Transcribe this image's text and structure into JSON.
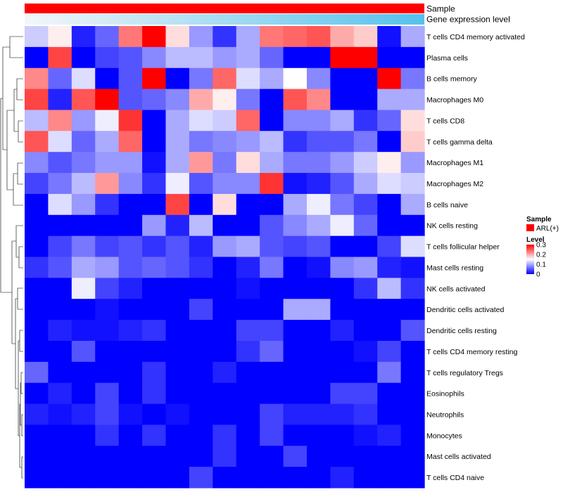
{
  "chart_data": {
    "type": "heatmap",
    "annotation_labels": [
      "Sample",
      "Gene expression level"
    ],
    "annotation_colors": {
      "sample": "#ff0000",
      "gene_expression_low": "#f4f7f9",
      "gene_expression_high": "#54c1ec"
    },
    "legend": {
      "sample": {
        "title": "Sample",
        "items": [
          {
            "label": "ARL(+)",
            "color": "#ff0000"
          }
        ]
      },
      "level": {
        "title": "Level",
        "ticks": [
          {
            "label": "0.3",
            "value": 0.3
          },
          {
            "label": "0.2",
            "value": 0.2
          },
          {
            "label": "0.1",
            "value": 0.1
          },
          {
            "label": "0",
            "value": 0
          }
        ],
        "colors": {
          "low": "#0000ff",
          "mid": "#ffffff",
          "high": "#ff0000"
        },
        "range": [
          0,
          0.3
        ]
      }
    },
    "rows": [
      "T cells CD4 memory activated",
      "Plasma cells",
      "B cells memory",
      "Macrophages M0",
      "T cells CD8",
      "T cells gamma delta",
      "Macrophages M1",
      "Macrophages M2",
      "B cells naive",
      "NK cells resting",
      "T cells follicular helper",
      "Mast cells resting",
      "NK cells activated",
      "Dendritic cells activated",
      "Dendritic cells resting",
      "T cells CD4 memory resting",
      "T cells regulatory  Tregs",
      "Eosinophils",
      "Neutrophils",
      "Monocytes",
      "Mast cells activated",
      "T cells CD4 naive"
    ],
    "values": [
      [
        0.12,
        0.16,
        0.02,
        0.06,
        0.23,
        0.3,
        0.17,
        0.09,
        0.03,
        0.1,
        0.23,
        0.24,
        0.25,
        0.2,
        0.18,
        0.01,
        0.1
      ],
      [
        0.0,
        0.26,
        0.0,
        0.04,
        0.05,
        0.08,
        0.11,
        0.11,
        0.09,
        0.1,
        0.06,
        0.0,
        0.0,
        0.3,
        0.3,
        0.0,
        0.0
      ],
      [
        0.22,
        0.06,
        0.13,
        0.0,
        0.05,
        0.3,
        0.0,
        0.07,
        0.24,
        0.13,
        0.1,
        0.15,
        0.08,
        0.0,
        0.0,
        0.3,
        0.07
      ],
      [
        0.26,
        0.02,
        0.25,
        0.3,
        0.05,
        0.06,
        0.08,
        0.2,
        0.16,
        0.07,
        0.0,
        0.25,
        0.22,
        0.0,
        0.0,
        0.1,
        0.1
      ],
      [
        0.11,
        0.22,
        0.09,
        0.14,
        0.27,
        0.0,
        0.1,
        0.13,
        0.12,
        0.24,
        0.0,
        0.08,
        0.08,
        0.1,
        0.03,
        0.06,
        0.17
      ],
      [
        0.25,
        0.13,
        0.06,
        0.1,
        0.24,
        0.0,
        0.1,
        0.07,
        0.08,
        0.09,
        0.11,
        0.03,
        0.05,
        0.05,
        0.07,
        0.0,
        0.18
      ],
      [
        0.08,
        0.05,
        0.07,
        0.09,
        0.09,
        0.01,
        0.1,
        0.21,
        0.07,
        0.17,
        0.1,
        0.07,
        0.07,
        0.09,
        0.12,
        0.16,
        0.09
      ],
      [
        0.04,
        0.07,
        0.11,
        0.21,
        0.08,
        0.03,
        0.14,
        0.05,
        0.08,
        0.08,
        0.27,
        0.01,
        0.02,
        0.05,
        0.1,
        0.13,
        0.12
      ],
      [
        0.0,
        0.13,
        0.09,
        0.03,
        0.0,
        0.0,
        0.26,
        0.0,
        0.17,
        0.0,
        0.0,
        0.1,
        0.14,
        0.07,
        0.04,
        0.0,
        0.1
      ],
      [
        0.0,
        0.0,
        0.0,
        0.0,
        0.0,
        0.09,
        0.02,
        0.11,
        0.0,
        0.0,
        0.05,
        0.08,
        0.1,
        0.14,
        0.06,
        0.0,
        0.0
      ],
      [
        0.0,
        0.04,
        0.07,
        0.04,
        0.05,
        0.03,
        0.05,
        0.02,
        0.09,
        0.1,
        0.05,
        0.04,
        0.05,
        0.0,
        0.0,
        0.04,
        0.13
      ],
      [
        0.03,
        0.05,
        0.1,
        0.09,
        0.05,
        0.06,
        0.05,
        0.03,
        0.0,
        0.02,
        0.07,
        0.0,
        0.01,
        0.08,
        0.09,
        0.02,
        0.01
      ],
      [
        0.0,
        0.0,
        0.14,
        0.04,
        0.02,
        0.0,
        0.0,
        0.0,
        0.0,
        0.01,
        0.0,
        0.0,
        0.0,
        0.0,
        0.03,
        0.11,
        0.03
      ],
      [
        0.0,
        0.0,
        0.0,
        0.01,
        0.0,
        0.0,
        0.0,
        0.04,
        0.0,
        0.0,
        0.0,
        0.1,
        0.1,
        0.0,
        0.0,
        0.0,
        0.0
      ],
      [
        0.0,
        0.02,
        0.01,
        0.01,
        0.02,
        0.03,
        0.0,
        0.0,
        0.0,
        0.04,
        0.04,
        0.0,
        0.0,
        0.02,
        0.0,
        0.0,
        0.05
      ],
      [
        0.0,
        0.0,
        0.05,
        0.0,
        0.0,
        0.0,
        0.0,
        0.0,
        0.0,
        0.03,
        0.06,
        0.0,
        0.0,
        0.0,
        0.01,
        0.04,
        0.0
      ],
      [
        0.06,
        0.0,
        0.0,
        0.0,
        0.0,
        0.03,
        0.0,
        0.0,
        0.02,
        0.0,
        0.0,
        0.0,
        0.0,
        0.0,
        0.0,
        0.07,
        0.0
      ],
      [
        0.0,
        0.02,
        0.0,
        0.04,
        0.0,
        0.03,
        0.0,
        0.0,
        0.0,
        0.0,
        0.0,
        0.0,
        0.0,
        0.04,
        0.04,
        0.0,
        0.0
      ],
      [
        0.02,
        0.01,
        0.02,
        0.04,
        0.01,
        0.0,
        0.01,
        0.0,
        0.0,
        0.0,
        0.04,
        0.02,
        0.02,
        0.02,
        0.03,
        0.0,
        0.0
      ],
      [
        0.0,
        0.0,
        0.0,
        0.03,
        0.0,
        0.03,
        0.0,
        0.0,
        0.03,
        0.0,
        0.04,
        0.0,
        0.0,
        0.0,
        0.01,
        0.02,
        0.0
      ],
      [
        0.0,
        0.0,
        0.0,
        0.0,
        0.0,
        0.0,
        0.0,
        0.0,
        0.03,
        0.0,
        0.0,
        0.04,
        0.0,
        0.0,
        0.0,
        0.0,
        0.0
      ],
      [
        0.0,
        0.0,
        0.0,
        0.0,
        0.0,
        0.0,
        0.0,
        0.04,
        0.0,
        0.0,
        0.0,
        0.0,
        0.0,
        0.02,
        0.0,
        0.0,
        0.0
      ]
    ]
  }
}
